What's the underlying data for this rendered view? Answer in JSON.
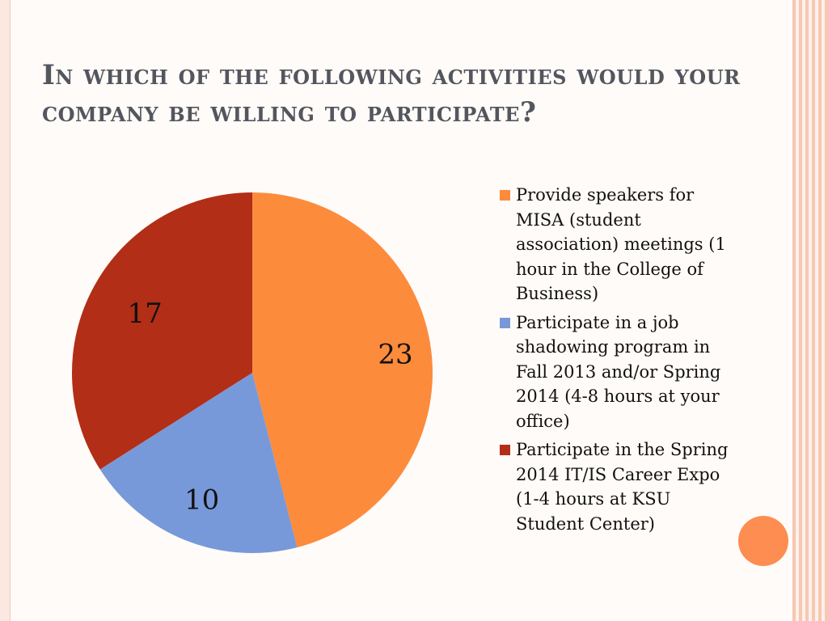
{
  "slide": {
    "title": "In which of the following activities would your company be willing to participate?"
  },
  "chart_data": {
    "type": "pie",
    "categories": [
      "Provide speakers for MISA (student association) meetings (1 hour in the College of Business)",
      "Participate in a job shadowing program in Fall 2013 and/or Spring 2014 (4-8 hours at your office)",
      "Participate in the Spring 2014 IT/IS Career Expo (1-4 hours at KSU Student Center)"
    ],
    "values": [
      23,
      10,
      17
    ],
    "data_labels": [
      "23",
      "10",
      "17"
    ],
    "colors": [
      "#fd8b3c",
      "#7899d9",
      "#b22e16"
    ],
    "legend_position": "right",
    "start_angle": "12 o'clock",
    "direction": "clockwise"
  },
  "decoration": {
    "accent_circle_color": "#fd8d50"
  }
}
